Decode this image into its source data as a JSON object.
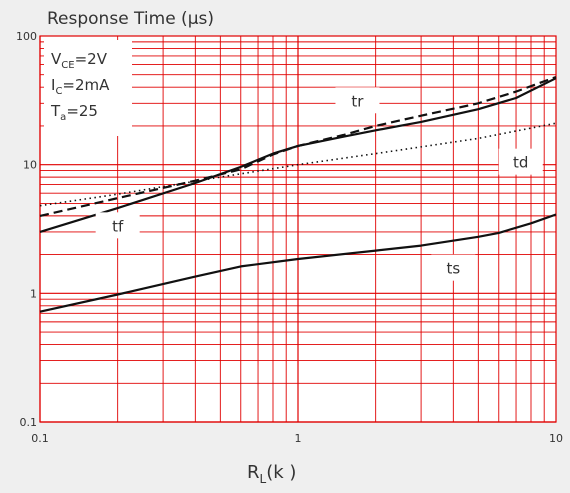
{
  "chart_data": {
    "type": "line",
    "title": "Response Time (μs)",
    "xlabel_main": "R",
    "xlabel_sub": "L",
    "xlabel_tail": "(k   )",
    "xscale": "log",
    "yscale": "log",
    "xlim": [
      0.1,
      10
    ],
    "ylim": [
      0.1,
      100
    ],
    "grid": true,
    "grid_color": "#e00000",
    "x_ticks": [
      {
        "value": 0.1,
        "label": "0.1"
      },
      {
        "value": 1,
        "label": "1"
      },
      {
        "value": 10,
        "label": "10"
      }
    ],
    "y_ticks": [
      {
        "value": 100,
        "label": "100"
      },
      {
        "value": 10,
        "label": "10"
      },
      {
        "value": 1,
        "label": "1"
      },
      {
        "value": 0.1,
        "label": "0.1"
      }
    ],
    "conditions": [
      {
        "main": "V",
        "sub": "CE",
        "rest": "=2V"
      },
      {
        "main": "I",
        "sub": "C",
        "rest": "=2mA"
      },
      {
        "main": "T",
        "sub": "a",
        "rest": "=25"
      }
    ],
    "series": [
      {
        "name": "tr",
        "style": "solid",
        "color": "#111111",
        "x": [
          0.1,
          0.2,
          0.4,
          0.6,
          0.8,
          1,
          1.5,
          2,
          3,
          5,
          7,
          10
        ],
        "y": [
          3.0,
          4.6,
          7.2,
          9.6,
          12.2,
          14.0,
          16.5,
          18.5,
          21.5,
          27.0,
          33.0,
          47.0
        ]
      },
      {
        "name": "tf",
        "style": "dashed",
        "color": "#111111",
        "x": [
          0.1,
          0.2,
          0.4,
          0.6,
          0.8,
          1,
          1.5,
          2,
          3,
          5,
          7,
          10
        ],
        "y": [
          4.0,
          5.5,
          7.5,
          9.2,
          12.0,
          14.0,
          17.0,
          20.0,
          24.0,
          30.0,
          37.0,
          48.0
        ]
      },
      {
        "name": "td",
        "style": "dotted",
        "color": "#111111",
        "x": [
          0.1,
          0.2,
          0.5,
          1,
          2,
          5,
          10
        ],
        "y": [
          4.8,
          5.9,
          8.0,
          10.0,
          12.2,
          16.0,
          21.0
        ]
      },
      {
        "name": "ts",
        "style": "solid",
        "color": "#111111",
        "x": [
          0.1,
          0.2,
          0.4,
          0.6,
          1,
          2,
          3,
          5,
          6,
          8,
          10
        ],
        "y": [
          0.72,
          0.98,
          1.35,
          1.62,
          1.85,
          2.15,
          2.35,
          2.75,
          2.95,
          3.5,
          4.1
        ]
      }
    ],
    "labels": [
      {
        "text": "tr",
        "x": 1.7,
        "y": 30
      },
      {
        "text": "td",
        "x": 7.3,
        "y": 10
      },
      {
        "text": "tf",
        "x": 0.2,
        "y": 3.2
      },
      {
        "text": "ts",
        "x": 4.0,
        "y": 1.5
      }
    ]
  }
}
